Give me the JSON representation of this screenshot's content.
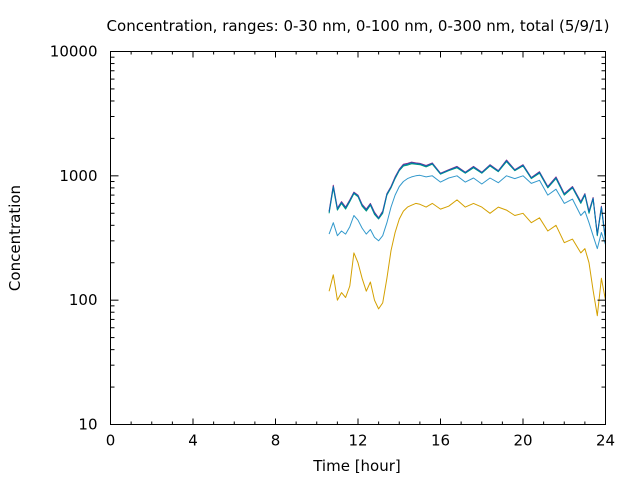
{
  "chart_data": {
    "type": "line",
    "title": "Concentration, ranges: 0-30 nm, 0-100 nm, 0-300 nm, total (5/9/1)",
    "xlabel": "Time [hour]",
    "ylabel": "Concentration",
    "xlim": [
      0,
      24
    ],
    "ylim": [
      10,
      10000
    ],
    "yscale": "log",
    "grid": false,
    "legend": "none",
    "x_ticks": [
      0,
      4,
      8,
      12,
      16,
      20,
      24
    ],
    "x_tick_labels": [
      "0",
      "4",
      "8",
      "12",
      "16",
      "20",
      "24"
    ],
    "y_ticks": [
      10,
      100,
      1000,
      10000
    ],
    "y_tick_labels": [
      "10",
      "100",
      "1000",
      "10000"
    ],
    "series": [
      {
        "color": "#d4a000",
        "x": [
          10.6,
          10.8,
          11.0,
          11.2,
          11.4,
          11.6,
          11.8,
          12.0,
          12.2,
          12.4,
          12.6,
          12.8,
          13.0,
          13.2,
          13.4,
          13.6,
          13.8,
          14.0,
          14.2,
          14.4,
          14.6,
          14.8,
          15.0,
          15.3,
          15.6,
          16.0,
          16.4,
          16.8,
          17.2,
          17.6,
          18.0,
          18.4,
          18.8,
          19.2,
          19.6,
          20.0,
          20.4,
          20.8,
          21.2,
          21.6,
          22.0,
          22.4,
          22.8,
          23.0,
          23.2,
          23.4,
          23.6,
          23.8,
          24.0
        ],
        "y": [
          118,
          160,
          100,
          115,
          105,
          130,
          240,
          200,
          150,
          118,
          140,
          100,
          85,
          95,
          150,
          250,
          350,
          450,
          520,
          560,
          580,
          600,
          590,
          560,
          600,
          540,
          570,
          640,
          560,
          600,
          560,
          500,
          560,
          530,
          480,
          500,
          420,
          460,
          360,
          400,
          290,
          310,
          240,
          260,
          200,
          120,
          75,
          150,
          100
        ]
      },
      {
        "color": "#3399cc",
        "x": [
          10.6,
          10.8,
          11.0,
          11.2,
          11.4,
          11.6,
          11.8,
          12.0,
          12.2,
          12.4,
          12.6,
          12.8,
          13.0,
          13.2,
          13.4,
          13.6,
          13.8,
          14.0,
          14.2,
          14.4,
          14.6,
          14.8,
          15.0,
          15.3,
          15.6,
          16.0,
          16.4,
          16.8,
          17.2,
          17.6,
          18.0,
          18.4,
          18.8,
          19.2,
          19.6,
          20.0,
          20.4,
          20.8,
          21.2,
          21.6,
          22.0,
          22.4,
          22.8,
          23.0,
          23.2,
          23.4,
          23.6,
          23.8,
          24.0
        ],
        "y": [
          340,
          420,
          330,
          360,
          340,
          390,
          480,
          440,
          380,
          340,
          370,
          320,
          300,
          330,
          420,
          560,
          700,
          820,
          900,
          950,
          980,
          1000,
          1010,
          980,
          1000,
          890,
          960,
          1000,
          890,
          960,
          860,
          960,
          880,
          1000,
          950,
          1000,
          870,
          920,
          700,
          780,
          600,
          650,
          480,
          520,
          420,
          330,
          260,
          350,
          280
        ]
      },
      {
        "color": "#009e73",
        "x": [
          10.6,
          10.8,
          11.0,
          11.2,
          11.4,
          11.6,
          11.8,
          12.0,
          12.2,
          12.4,
          12.6,
          12.8,
          13.0,
          13.2,
          13.4,
          13.6,
          13.8,
          14.0,
          14.2,
          14.4,
          14.6,
          14.8,
          15.0,
          15.3,
          15.6,
          16.0,
          16.4,
          16.8,
          17.2,
          17.6,
          18.0,
          18.4,
          18.8,
          19.2,
          19.6,
          20.0,
          20.4,
          20.8,
          21.2,
          21.6,
          22.0,
          22.4,
          22.8,
          23.0,
          23.2,
          23.4,
          23.6,
          23.8,
          24.0
        ],
        "y": [
          500,
          800,
          530,
          600,
          540,
          620,
          720,
          680,
          570,
          520,
          580,
          490,
          450,
          500,
          700,
          800,
          950,
          1100,
          1200,
          1220,
          1250,
          1240,
          1230,
          1180,
          1240,
          1030,
          1100,
          1160,
          1050,
          1160,
          1050,
          1200,
          1080,
          1300,
          1100,
          1200,
          950,
          1050,
          800,
          950,
          700,
          800,
          600,
          700,
          500,
          650,
          330,
          550,
          300
        ]
      },
      {
        "color": "#8a2b8a",
        "x": [
          10.6,
          10.8,
          11.0,
          11.2,
          11.4,
          11.6,
          11.8,
          12.0,
          12.2,
          12.4,
          12.6,
          12.8,
          13.0,
          13.2,
          13.4,
          13.6,
          13.8,
          14.0,
          14.2,
          14.4,
          14.6,
          14.8,
          15.0,
          15.3,
          15.6,
          16.0,
          16.4,
          16.8,
          17.2,
          17.6,
          18.0,
          18.4,
          18.8,
          19.2,
          19.6,
          20.0,
          20.4,
          20.8,
          21.2,
          21.6,
          22.0,
          22.4,
          22.8,
          23.0,
          23.2,
          23.4,
          23.6,
          23.8,
          24.0
        ],
        "y": [
          520,
          840,
          550,
          620,
          560,
          640,
          740,
          700,
          590,
          540,
          600,
          510,
          460,
          520,
          720,
          820,
          980,
          1130,
          1240,
          1260,
          1290,
          1270,
          1260,
          1210,
          1270,
          1050,
          1120,
          1190,
          1070,
          1190,
          1070,
          1230,
          1100,
          1340,
          1120,
          1230,
          970,
          1080,
          820,
          980,
          720,
          820,
          620,
          720,
          520,
          670,
          340,
          570,
          310
        ]
      },
      {
        "color": "#0072b2",
        "x": [
          10.6,
          10.8,
          11.0,
          11.2,
          11.4,
          11.6,
          11.8,
          12.0,
          12.2,
          12.4,
          12.6,
          12.8,
          13.0,
          13.2,
          13.4,
          13.6,
          13.8,
          14.0,
          14.2,
          14.4,
          14.6,
          14.8,
          15.0,
          15.3,
          15.6,
          16.0,
          16.4,
          16.8,
          17.2,
          17.6,
          18.0,
          18.4,
          18.8,
          19.2,
          19.6,
          20.0,
          20.4,
          20.8,
          21.2,
          21.6,
          22.0,
          22.4,
          22.8,
          23.0,
          23.2,
          23.4,
          23.6,
          23.8,
          24.0
        ],
        "y": [
          510,
          820,
          540,
          610,
          550,
          630,
          730,
          690,
          580,
          530,
          590,
          500,
          455,
          510,
          710,
          810,
          965,
          1115,
          1220,
          1240,
          1270,
          1255,
          1245,
          1195,
          1255,
          1040,
          1110,
          1175,
          1060,
          1175,
          1060,
          1215,
          1090,
          1320,
          1110,
          1215,
          960,
          1065,
          810,
          965,
          710,
          810,
          610,
          710,
          510,
          660,
          335,
          560,
          305
        ]
      }
    ]
  }
}
